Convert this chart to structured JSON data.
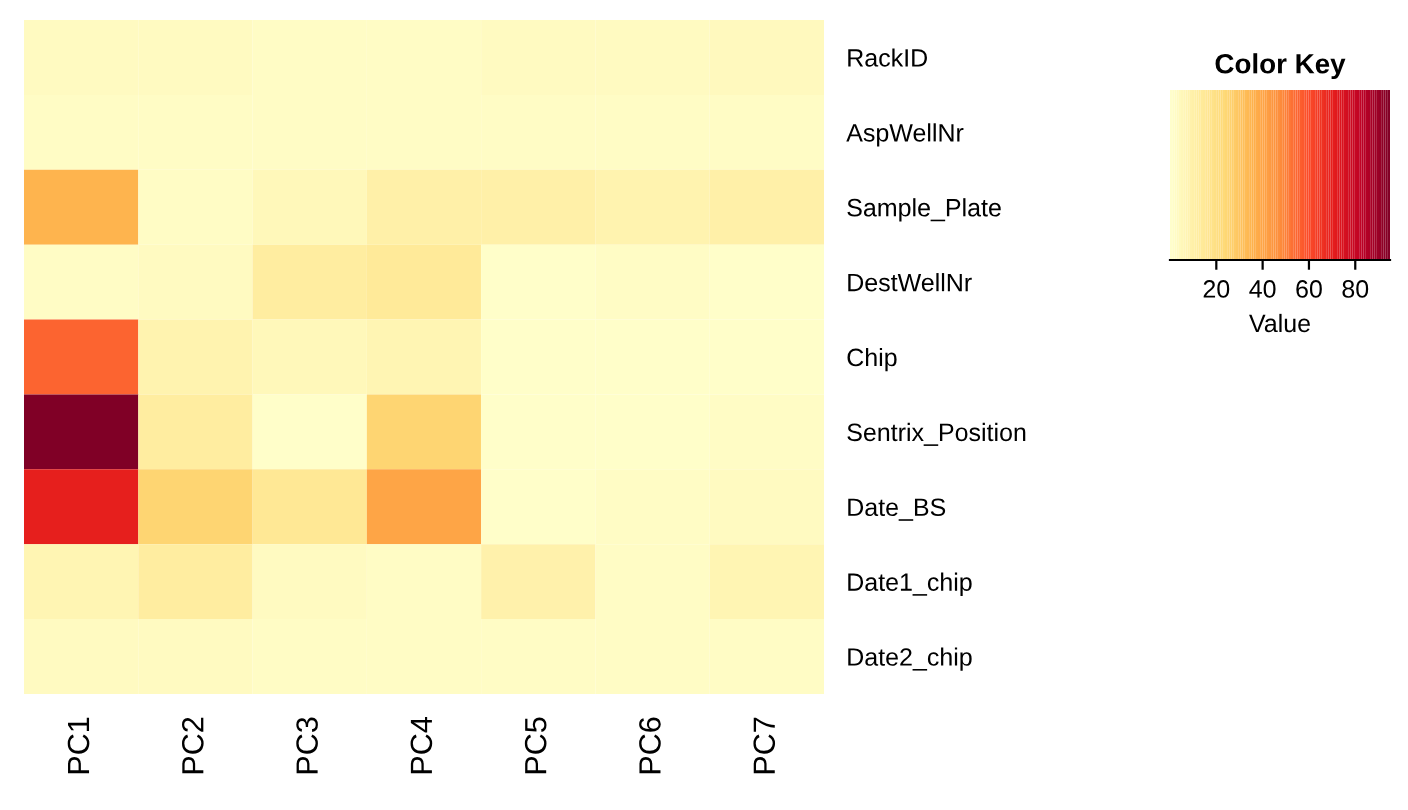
{
  "chart_data": {
    "type": "heatmap",
    "legend_title": "Color Key",
    "clabel": "Value",
    "categories": [
      "PC1",
      "PC2",
      "PC3",
      "PC4",
      "PC5",
      "PC6",
      "PC7"
    ],
    "y_categories": [
      "RackID",
      "AspWellNr",
      "Sample_Plate",
      "DestWellNr",
      "Chip",
      "Sentrix_Position",
      "Date_BS",
      "Date1_chip",
      "Date2_chip"
    ],
    "cells": [
      [
        3,
        3,
        2,
        2,
        3,
        3,
        4
      ],
      [
        2,
        2,
        2,
        2,
        2,
        2,
        2
      ],
      [
        35,
        2,
        5,
        10,
        10,
        8,
        10
      ],
      [
        2,
        3,
        12,
        14,
        1,
        2,
        1
      ],
      [
        55,
        8,
        5,
        7,
        1,
        1,
        1
      ],
      [
        95,
        12,
        1,
        25,
        1,
        1,
        2
      ],
      [
        70,
        25,
        15,
        40,
        1,
        2,
        3
      ],
      [
        7,
        12,
        3,
        2,
        9,
        2,
        7
      ],
      [
        3,
        3,
        2,
        2,
        2,
        2,
        2
      ]
    ],
    "clim": [
      0,
      95
    ],
    "cticks": [
      20,
      40,
      60,
      80
    ]
  }
}
